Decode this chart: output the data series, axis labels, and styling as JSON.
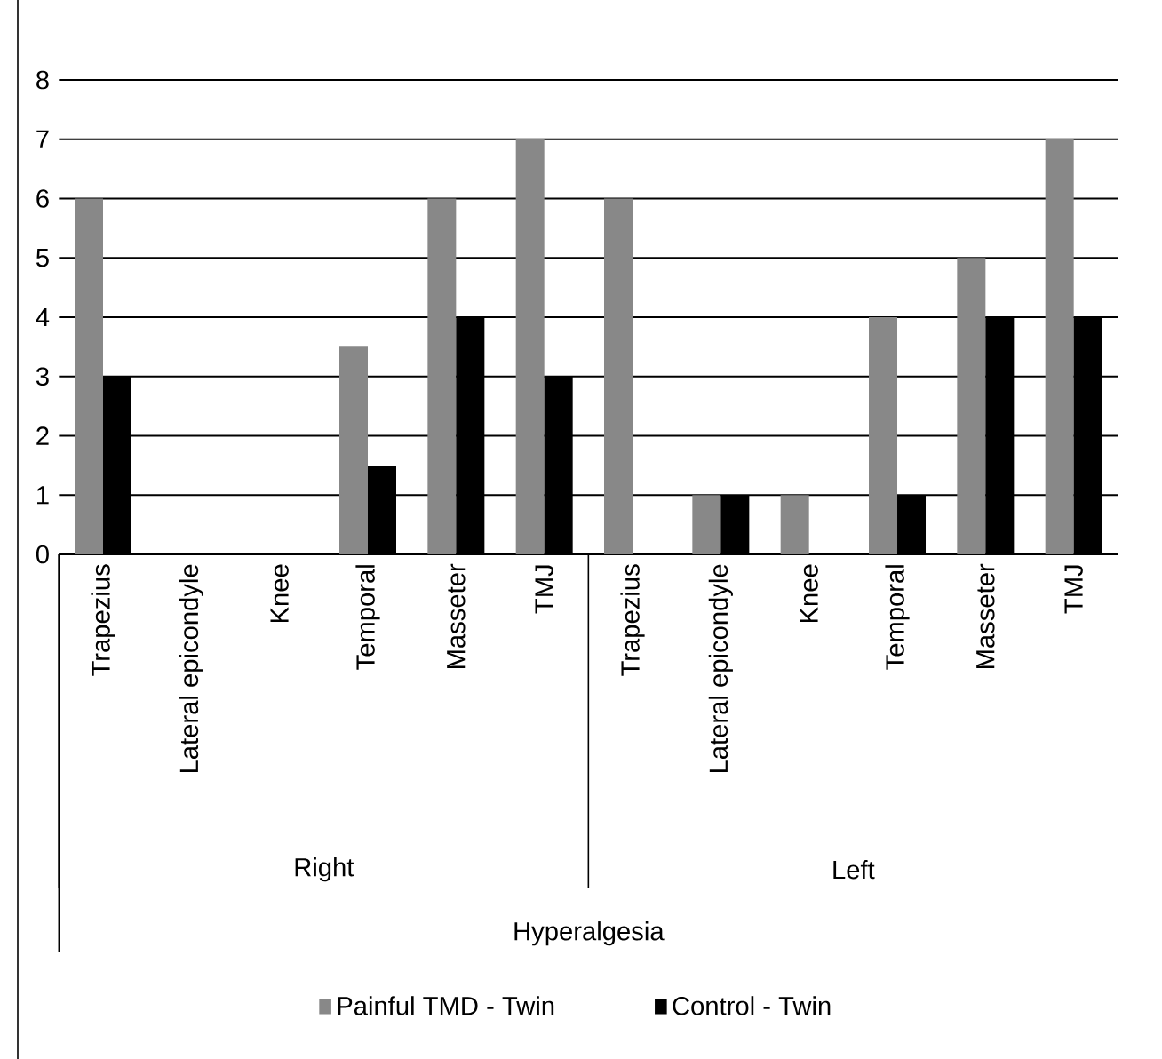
{
  "chart_data": {
    "type": "bar",
    "categories": [
      "Trapezius",
      "Lateral epicondyle",
      "Knee",
      "Temporal",
      "Masseter",
      "TMJ",
      "Trapezius",
      "Lateral epicondyle",
      "Knee",
      "Temporal",
      "Masseter",
      "TMJ"
    ],
    "series": [
      {
        "name": "Painful TMD - Twin",
        "color": "#888888",
        "values": [
          6,
          0,
          0,
          3.5,
          6,
          7,
          6,
          1,
          1,
          4,
          5,
          7
        ]
      },
      {
        "name": "Control - Twin",
        "color": "#000000",
        "values": [
          3,
          0,
          0,
          1.5,
          4,
          3,
          0,
          1,
          0,
          1,
          4,
          4
        ]
      }
    ],
    "annotations": [
      "Right",
      "Left",
      "Hyperalgesia"
    ],
    "ylim": [
      0,
      8
    ],
    "yticks": [
      0,
      1,
      2,
      3,
      4,
      5,
      6,
      7,
      8
    ],
    "grid": "y",
    "legend": "bottom"
  }
}
